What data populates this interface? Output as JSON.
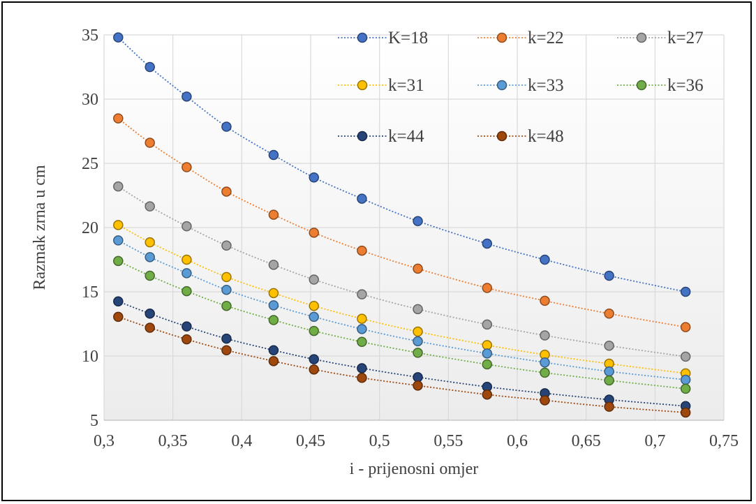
{
  "chart_data": {
    "type": "line",
    "title": "",
    "xlabel": "i - prijenosni omjer",
    "ylabel": "Razmak zrna u cm",
    "xlim": [
      0.3,
      0.75
    ],
    "ylim": [
      5,
      35
    ],
    "xticks": [
      "0,3",
      "0,35",
      "0,4",
      "0,45",
      "0,5",
      "0,55",
      "0,6",
      "0,65",
      "0,7",
      "0,75"
    ],
    "yticks": [
      "5",
      "10",
      "15",
      "20",
      "25",
      "30",
      "35"
    ],
    "grid": true,
    "legend_position": "top",
    "x": [
      0.3103,
      0.3333,
      0.36,
      0.3889,
      0.4231,
      0.4524,
      0.4872,
      0.5278,
      0.5781,
      0.62,
      0.6667,
      0.7222
    ],
    "series": [
      {
        "name": "K=18",
        "color": "#4472C4",
        "values": [
          34.8,
          32.5,
          30.2,
          27.85,
          25.65,
          23.9,
          22.25,
          20.5,
          18.75,
          17.5,
          16.25,
          15.0
        ]
      },
      {
        "name": "k=22",
        "color": "#ED7D31",
        "values": [
          28.5,
          26.6,
          24.7,
          22.8,
          21.0,
          19.6,
          18.2,
          16.8,
          15.3,
          14.3,
          13.3,
          12.25
        ]
      },
      {
        "name": "k=27",
        "color": "#A5A5A5",
        "values": [
          23.2,
          21.65,
          20.1,
          18.6,
          17.1,
          15.95,
          14.8,
          13.65,
          12.45,
          11.6,
          10.8,
          9.95
        ]
      },
      {
        "name": "k=31",
        "color": "#FFC000",
        "values": [
          20.2,
          18.85,
          17.5,
          16.15,
          14.9,
          13.9,
          12.9,
          11.9,
          10.85,
          10.1,
          9.4,
          8.65
        ]
      },
      {
        "name": "k=33",
        "color": "#5B9BD5",
        "values": [
          19.0,
          17.7,
          16.45,
          15.15,
          13.95,
          13.05,
          12.1,
          11.15,
          10.2,
          9.5,
          8.8,
          8.15
        ]
      },
      {
        "name": "k=36",
        "color": "#70AD47",
        "values": [
          17.4,
          16.25,
          15.05,
          13.9,
          12.8,
          11.95,
          11.1,
          10.25,
          9.35,
          8.7,
          8.1,
          7.45
        ]
      },
      {
        "name": "k=44",
        "color": "#264478",
        "values": [
          14.25,
          13.3,
          12.3,
          11.35,
          10.45,
          9.75,
          9.05,
          8.35,
          7.6,
          7.1,
          6.6,
          6.1
        ]
      },
      {
        "name": "k=48",
        "color": "#9E480E",
        "values": [
          13.05,
          12.2,
          11.3,
          10.45,
          9.6,
          8.95,
          8.3,
          7.7,
          7.0,
          6.55,
          6.05,
          5.6
        ]
      }
    ]
  }
}
